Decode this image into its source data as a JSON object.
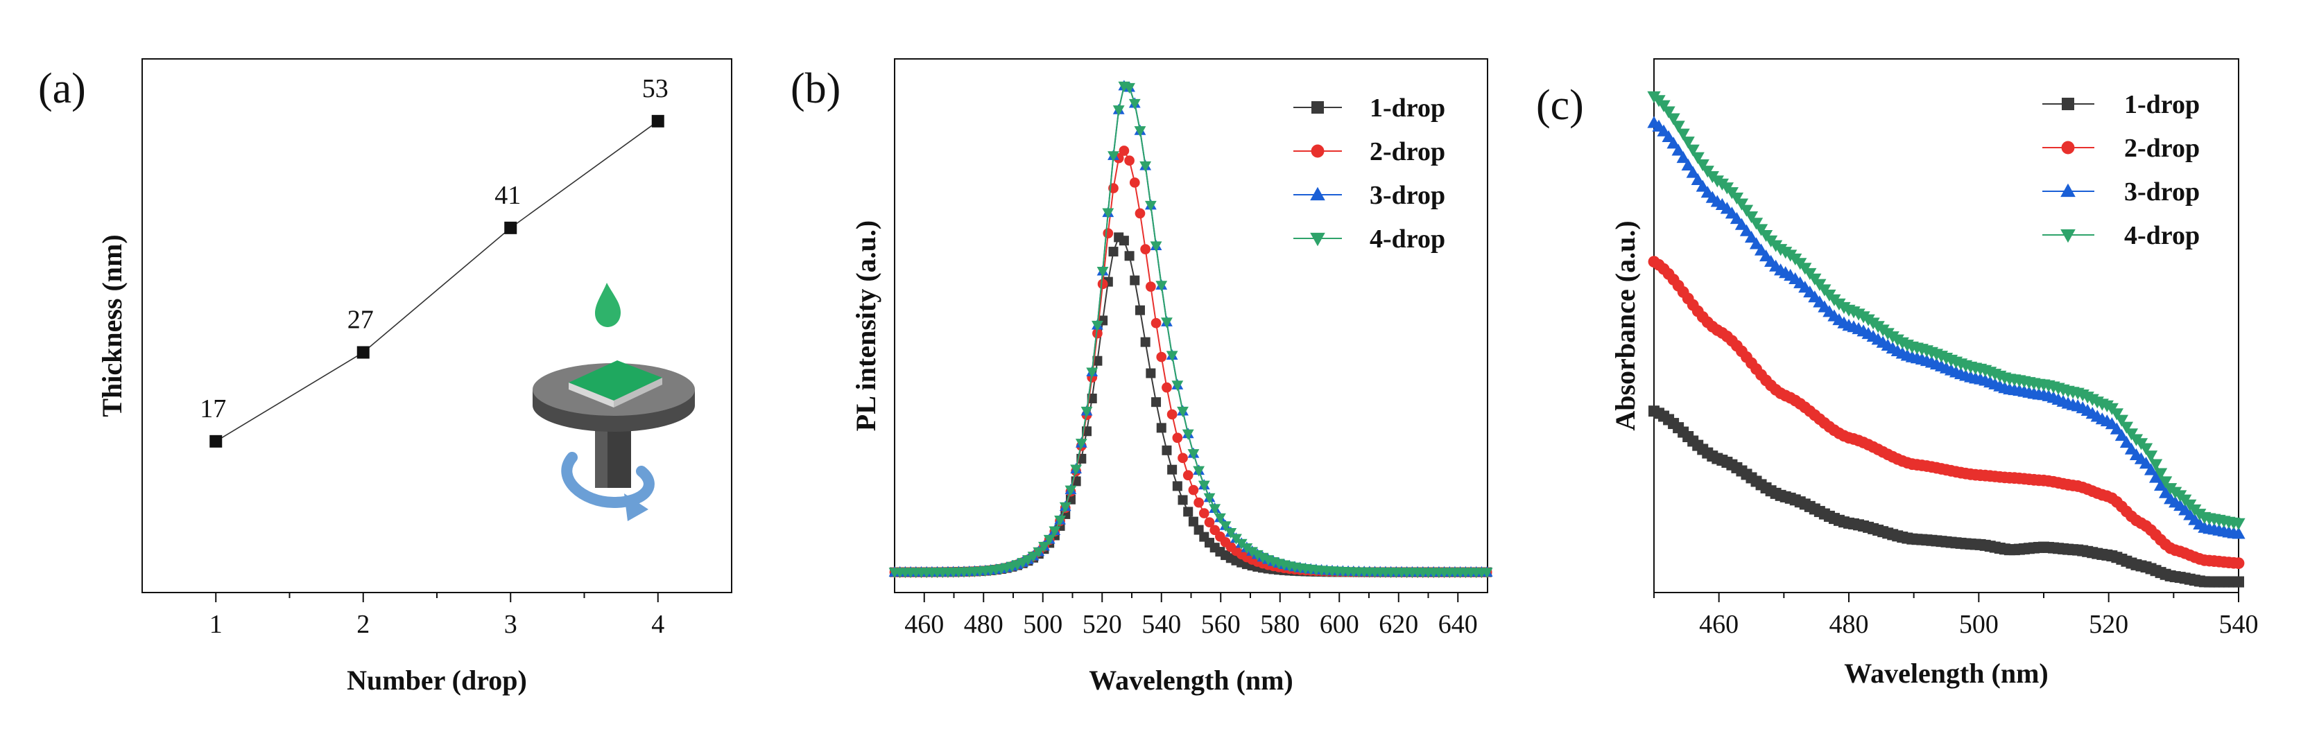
{
  "chart_data": [
    {
      "panel": "(a)",
      "type": "line",
      "xlabel": "Number (drop)",
      "ylabel": "Thickness (nm)",
      "x": [
        1,
        2,
        3,
        4
      ],
      "y": [
        17,
        27,
        41,
        53
      ],
      "data_labels": [
        "17",
        "27",
        "41",
        "53"
      ],
      "xticks": [
        "1",
        "2",
        "3",
        "4"
      ],
      "xlim": [
        0.5,
        4.5
      ],
      "ylim": [
        0,
        60
      ],
      "grid": false,
      "inset": "spin-coater-drop-icon"
    },
    {
      "panel": "(b)",
      "type": "line",
      "xlabel": "Wavelength (nm)",
      "ylabel": "PL intensity (a.u.)",
      "xticks": [
        "460",
        "480",
        "500",
        "520",
        "540",
        "560",
        "580",
        "600",
        "620",
        "640"
      ],
      "xlim": [
        450,
        650
      ],
      "ylim": [
        0,
        1.05
      ],
      "legend": "top-right",
      "baseline": 0.04,
      "series": [
        {
          "name": "1-drop",
          "color": "#3a3a3a",
          "marker": "square",
          "peak_x": 526,
          "peak_y": 0.7,
          "width_left": 11,
          "width_right": 14
        },
        {
          "name": "2-drop",
          "color": "#e8302c",
          "marker": "circle",
          "peak_x": 527,
          "peak_y": 0.87,
          "width_left": 11,
          "width_right": 15
        },
        {
          "name": "3-drop",
          "color": "#1a5fd6",
          "marker": "triangle-up",
          "peak_x": 528,
          "peak_y": 1.0,
          "width_left": 11,
          "width_right": 16
        },
        {
          "name": "4-drop",
          "color": "#2ea36a",
          "marker": "triangle-down",
          "peak_x": 528,
          "peak_y": 1.0,
          "width_left": 11,
          "width_right": 16
        }
      ]
    },
    {
      "panel": "(c)",
      "type": "line",
      "xlabel": "Wavelength (nm)",
      "ylabel": "Absorbance (a.u.)",
      "xticks": [
        "460",
        "480",
        "500",
        "520",
        "540"
      ],
      "xlim": [
        450,
        540
      ],
      "ylim": [
        0,
        1.0
      ],
      "legend": "top-right",
      "series": [
        {
          "name": "1-drop",
          "color": "#3a3a3a",
          "marker": "square",
          "x": [
            450,
            460,
            470,
            480,
            490,
            500,
            505,
            510,
            515,
            520,
            525,
            530,
            535,
            540
          ],
          "y": [
            0.34,
            0.25,
            0.18,
            0.13,
            0.1,
            0.09,
            0.08,
            0.085,
            0.08,
            0.07,
            0.05,
            0.03,
            0.02,
            0.02
          ]
        },
        {
          "name": "2-drop",
          "color": "#e8302c",
          "marker": "circle",
          "x": [
            450,
            460,
            470,
            480,
            490,
            500,
            505,
            510,
            515,
            520,
            525,
            530,
            535,
            540
          ],
          "y": [
            0.62,
            0.49,
            0.37,
            0.29,
            0.24,
            0.22,
            0.215,
            0.21,
            0.2,
            0.18,
            0.13,
            0.08,
            0.06,
            0.055
          ]
        },
        {
          "name": "3-drop",
          "color": "#1a5fd6",
          "marker": "triangle-up",
          "x": [
            450,
            460,
            470,
            480,
            490,
            500,
            505,
            510,
            515,
            520,
            525,
            530,
            535,
            540
          ],
          "y": [
            0.88,
            0.73,
            0.6,
            0.5,
            0.44,
            0.4,
            0.38,
            0.37,
            0.35,
            0.32,
            0.25,
            0.17,
            0.12,
            0.11
          ]
        },
        {
          "name": "4-drop",
          "color": "#2ea36a",
          "marker": "triangle-down",
          "x": [
            450,
            460,
            470,
            480,
            490,
            500,
            505,
            510,
            515,
            520,
            525,
            530,
            535,
            540
          ],
          "y": [
            0.93,
            0.77,
            0.64,
            0.53,
            0.46,
            0.42,
            0.4,
            0.39,
            0.375,
            0.35,
            0.28,
            0.19,
            0.14,
            0.13
          ]
        }
      ]
    }
  ]
}
